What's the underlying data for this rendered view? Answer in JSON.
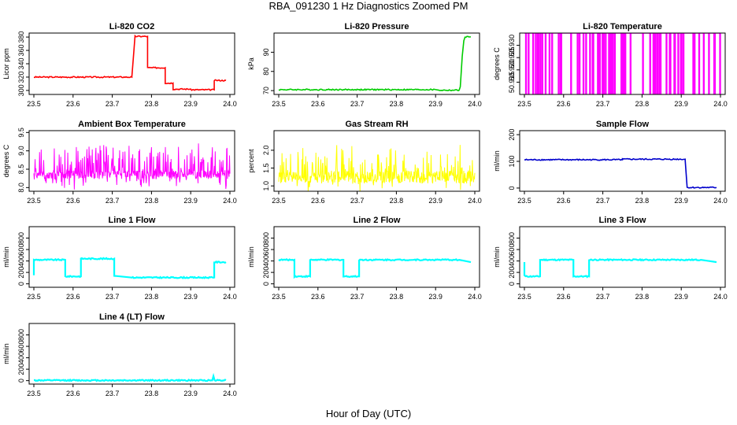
{
  "figure": {
    "title": "RBA_091230  1 Hz Diagnostics Zoomed PM",
    "xlabel": "Hour of Day (UTC)"
  },
  "chart_data": [
    {
      "id": "co2",
      "type": "line",
      "title": "Li-820 CO2",
      "ylabel": "Licor ppm",
      "color": "#ff0000",
      "xlim": [
        23.5,
        24.0
      ],
      "xticks": [
        "23.5",
        "23.6",
        "23.7",
        "23.8",
        "23.9",
        "24.0"
      ],
      "ylim": [
        294,
        386
      ],
      "yticks": [
        "300",
        "320",
        "340",
        "360",
        "380"
      ],
      "style": "step",
      "x": [
        23.5,
        23.75,
        23.75,
        23.758,
        23.758,
        23.79,
        23.79,
        23.835,
        23.835,
        23.855,
        23.855,
        23.9,
        23.9,
        23.96,
        23.96,
        23.99
      ],
      "y": [
        320,
        320,
        321,
        381,
        381,
        381,
        334,
        334,
        311,
        311,
        302,
        302,
        301,
        301,
        315,
        315
      ]
    },
    {
      "id": "pressure",
      "type": "line",
      "title": "Li-820 Pressure",
      "ylabel": "kPa",
      "color": "#00cc00",
      "xlim": [
        23.5,
        24.0
      ],
      "xticks": [
        "23.5",
        "23.6",
        "23.7",
        "23.8",
        "23.9",
        "24.0"
      ],
      "ylim": [
        68,
        100
      ],
      "yticks": [
        "70",
        "80",
        "90"
      ],
      "style": "line",
      "x": [
        23.5,
        23.9,
        23.91,
        23.96,
        23.963,
        23.968,
        23.972,
        23.975,
        23.99
      ],
      "y": [
        70.5,
        70.5,
        70.2,
        70.2,
        72,
        88,
        96,
        98,
        98
      ]
    },
    {
      "id": "temperature",
      "type": "line",
      "title": "Li-820 Temperature",
      "ylabel": "degrees C",
      "color": "#ff00ff",
      "xlim": [
        23.5,
        24.0
      ],
      "xticks": [
        "23.5",
        "23.6",
        "23.7",
        "23.8",
        "23.9",
        "24.0"
      ],
      "ylim": [
        50.91,
        50.935
      ],
      "yticks": [
        "50.915",
        "50.920",
        "50.925",
        "50.930"
      ],
      "style": "toggle",
      "base": 50.935,
      "low": 50.91,
      "seed": 7,
      "density": 0.22
    },
    {
      "id": "ambient",
      "type": "line",
      "title": "Ambient Box Temperature",
      "ylabel": "degrees C",
      "color": "#ff00ff",
      "xlim": [
        23.5,
        24.0
      ],
      "xticks": [
        "23.5",
        "23.6",
        "23.7",
        "23.8",
        "23.9",
        "24.0"
      ],
      "ylim": [
        7.9,
        9.55
      ],
      "yticks": [
        "8.0",
        "8.5",
        "9.0",
        "9.5"
      ],
      "style": "noise",
      "base": 8.35,
      "spread": 0.12,
      "spike": 1.1,
      "seed": 11
    },
    {
      "id": "rh",
      "type": "line",
      "title": "Gas Stream RH",
      "ylabel": "percent",
      "color": "#ffff00",
      "xlim": [
        23.5,
        24.0
      ],
      "xticks": [
        "23.5",
        "23.6",
        "23.7",
        "23.8",
        "23.9",
        "24.0"
      ],
      "ylim": [
        0.85,
        2.55
      ],
      "yticks": [
        "1.0",
        "1.5",
        "2.0"
      ],
      "style": "noise",
      "base": 1.25,
      "spread": 0.18,
      "spike": 1.1,
      "seed": 23
    },
    {
      "id": "sample",
      "type": "line",
      "title": "Sample Flow",
      "ylabel": "ml/min",
      "color": "#0000cc",
      "xlim": [
        23.5,
        24.0
      ],
      "xticks": [
        "23.5",
        "23.6",
        "23.7",
        "23.8",
        "23.9",
        "24.0"
      ],
      "ylim": [
        -12,
        215
      ],
      "yticks": [
        "0",
        "100",
        "200"
      ],
      "style": "line",
      "x": [
        23.5,
        23.75,
        23.75,
        23.91,
        23.91,
        23.915,
        23.99
      ],
      "y": [
        106,
        106,
        108,
        108,
        105,
        2,
        2
      ]
    },
    {
      "id": "line1",
      "type": "line",
      "title": "Line 1 Flow",
      "ylabel": "ml/min",
      "color": "#00ffff",
      "xlim": [
        23.5,
        24.0
      ],
      "xticks": [
        "23.5",
        "23.6",
        "23.7",
        "23.8",
        "23.9",
        "24.0"
      ],
      "ylim": [
        -60,
        1000
      ],
      "yticks": [
        "0",
        "200",
        "400",
        "600",
        "800"
      ],
      "style": "line",
      "x": [
        23.5,
        23.5,
        23.58,
        23.58,
        23.62,
        23.62,
        23.705,
        23.705,
        23.75,
        23.96,
        23.96,
        23.99
      ],
      "y": [
        150,
        420,
        420,
        130,
        130,
        440,
        440,
        140,
        110,
        110,
        380,
        380
      ]
    },
    {
      "id": "line2",
      "type": "line",
      "title": "Line 2 Flow",
      "ylabel": "ml/min",
      "color": "#00ffff",
      "xlim": [
        23.5,
        24.0
      ],
      "xticks": [
        "23.5",
        "23.6",
        "23.7",
        "23.8",
        "23.9",
        "24.0"
      ],
      "ylim": [
        -60,
        1000
      ],
      "yticks": [
        "0",
        "200",
        "400",
        "600",
        "800"
      ],
      "style": "line",
      "x": [
        23.5,
        23.54,
        23.54,
        23.58,
        23.58,
        23.665,
        23.665,
        23.705,
        23.705,
        23.96,
        23.99
      ],
      "y": [
        420,
        420,
        130,
        130,
        420,
        420,
        130,
        130,
        420,
        420,
        380
      ]
    },
    {
      "id": "line3",
      "type": "line",
      "title": "Line 3 Flow",
      "ylabel": "ml/min",
      "color": "#00ffff",
      "xlim": [
        23.5,
        24.0
      ],
      "xticks": [
        "23.5",
        "23.6",
        "23.7",
        "23.8",
        "23.9",
        "24.0"
      ],
      "ylim": [
        -60,
        1000
      ],
      "yticks": [
        "0",
        "200",
        "400",
        "600",
        "800"
      ],
      "style": "line",
      "x": [
        23.5,
        23.5,
        23.503,
        23.54,
        23.54,
        23.625,
        23.625,
        23.665,
        23.665,
        23.95,
        23.99
      ],
      "y": [
        380,
        150,
        130,
        130,
        420,
        420,
        130,
        130,
        420,
        420,
        380
      ]
    },
    {
      "id": "line4",
      "type": "line",
      "title": "Line 4 (LT) Flow",
      "ylabel": "ml/min",
      "color": "#00ffff",
      "xlim": [
        23.5,
        24.0
      ],
      "xticks": [
        "23.5",
        "23.6",
        "23.7",
        "23.8",
        "23.9",
        "24.0"
      ],
      "ylim": [
        -60,
        1000
      ],
      "yticks": [
        "0",
        "200",
        "400",
        "600",
        "800"
      ],
      "style": "line",
      "x": [
        23.5,
        23.955,
        23.958,
        23.961,
        23.99
      ],
      "y": [
        5,
        5,
        80,
        8,
        8
      ]
    }
  ]
}
